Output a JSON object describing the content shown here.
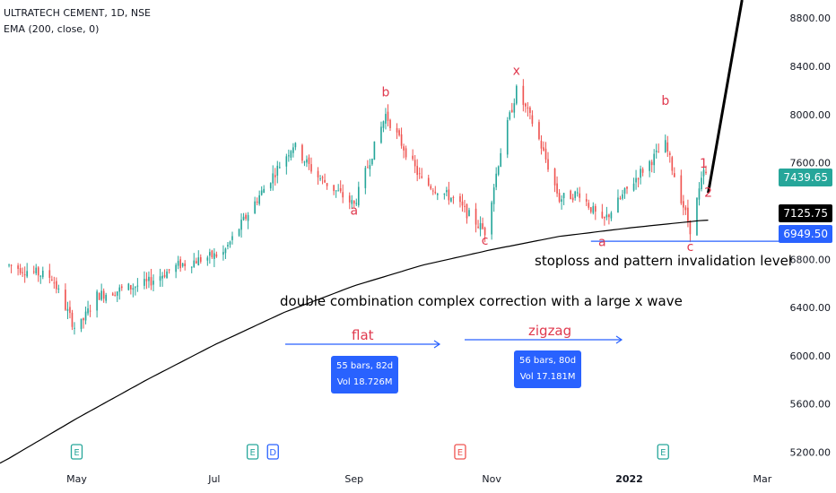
{
  "header": {
    "symbol_line": "ULTRATECH CEMENT, 1D, NSE",
    "indicator_line": "EMA (200, close, 0)"
  },
  "colors": {
    "up": "#26a69a",
    "down": "#ef5350",
    "ema": "#000000",
    "accent": "#2962ff",
    "wave_label": "#e0394e"
  },
  "price_tags": {
    "last_price": "7439.65",
    "ema_value": "7125.75",
    "stoploss": "6949.50"
  },
  "annotations": {
    "stoploss_text": "stoploss and pattern invalidation level",
    "pattern_text": "double combination complex correction with a large x wave",
    "flat_label": "flat",
    "zigzag_label": "zigzag",
    "flat_stats": {
      "bars": "55 bars, 82d",
      "vol": "Vol 18.726M"
    },
    "zigzag_stats": {
      "bars": "56 bars, 80d",
      "vol": "Vol 17.181M"
    }
  },
  "wave_labels": [
    {
      "text": "b",
      "date": "Sep 15",
      "price": 8150
    },
    {
      "text": "a",
      "date": "Sep 1",
      "price": 7170
    },
    {
      "text": "c",
      "date": "Oct 29",
      "price": 6920
    },
    {
      "text": "x",
      "date": "Nov 12",
      "price": 8330
    },
    {
      "text": "a",
      "date": "Dec 20",
      "price": 6910
    },
    {
      "text": "b",
      "date": "Jan 17",
      "price": 8080
    },
    {
      "text": "c",
      "date": "Jan 28",
      "price": 6870
    },
    {
      "text": "1",
      "date": "Feb 3",
      "price": 7560
    },
    {
      "text": "2",
      "date": "Feb 5",
      "price": 7320
    }
  ],
  "chart_data": {
    "type": "candlestick",
    "title": "ULTRATECH CEMENT, 1D, NSE",
    "y_axis": {
      "ticks": [
        "5200.00",
        "5600.00",
        "6000.00",
        "6400.00",
        "6800.00",
        "7200.00",
        "7600.00",
        "8000.00",
        "8400.00",
        "8800.00"
      ],
      "range": [
        5100,
        8950
      ]
    },
    "x_axis": {
      "ticks": [
        "May",
        "Jul",
        "Sep",
        "Nov",
        "2022",
        "Mar"
      ]
    },
    "ema_200": [
      {
        "date": "Apr 1",
        "value": 5150
      },
      {
        "date": "May 1",
        "value": 5480
      },
      {
        "date": "Jun 1",
        "value": 5800
      },
      {
        "date": "Jul 1",
        "value": 6090
      },
      {
        "date": "Aug 1",
        "value": 6360
      },
      {
        "date": "Sep 1",
        "value": 6580
      },
      {
        "date": "Oct 1",
        "value": 6750
      },
      {
        "date": "Nov 1",
        "value": 6880
      },
      {
        "date": "Dec 1",
        "value": 6990
      },
      {
        "date": "Jan 1",
        "value": 7060
      },
      {
        "date": "Feb 1",
        "value": 7120
      },
      {
        "date": "Feb 6",
        "value": 7126
      }
    ],
    "price_path": [
      {
        "date": "Apr 1",
        "value": 6750
      },
      {
        "date": "Apr 20",
        "value": 6650
      },
      {
        "date": "May 1",
        "value": 6200
      },
      {
        "date": "May 10",
        "value": 6500
      },
      {
        "date": "Jun 1",
        "value": 6600
      },
      {
        "date": "Jun 15",
        "value": 6750
      },
      {
        "date": "Jul 5",
        "value": 6850
      },
      {
        "date": "Jul 20",
        "value": 7300
      },
      {
        "date": "Aug 5",
        "value": 7750
      },
      {
        "date": "Aug 15",
        "value": 7500
      },
      {
        "date": "Sep 1",
        "value": 7250
      },
      {
        "date": "Sep 15",
        "value": 8000
      },
      {
        "date": "Oct 1",
        "value": 7450
      },
      {
        "date": "Oct 15",
        "value": 7300
      },
      {
        "date": "Oct 29",
        "value": 7030
      },
      {
        "date": "Nov 5",
        "value": 7700
      },
      {
        "date": "Nov 12",
        "value": 8200
      },
      {
        "date": "Nov 20",
        "value": 7900
      },
      {
        "date": "Dec 1",
        "value": 7300
      },
      {
        "date": "Dec 10",
        "value": 7350
      },
      {
        "date": "Dec 20",
        "value": 7100
      },
      {
        "date": "Jan 5",
        "value": 7500
      },
      {
        "date": "Jan 17",
        "value": 7750
      },
      {
        "date": "Jan 28",
        "value": 7050
      },
      {
        "date": "Feb 3",
        "value": 7520
      },
      {
        "date": "Feb 6",
        "value": 7440
      }
    ],
    "projection": [
      {
        "date": "Feb 5",
        "value": 7350
      },
      {
        "date": "Feb 20",
        "value": 8950
      }
    ],
    "legend": []
  }
}
